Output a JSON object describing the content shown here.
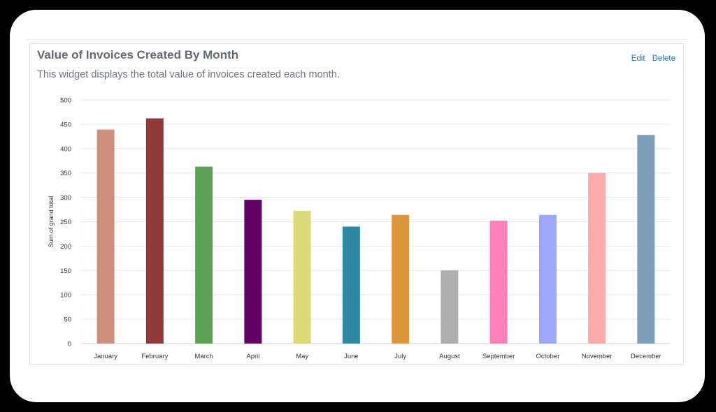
{
  "widget": {
    "title": "Value of Invoices Created By Month",
    "description": "This widget displays the total value of invoices created each month.",
    "edit_label": "Edit",
    "delete_label": "Delete"
  },
  "chart_data": {
    "type": "bar",
    "ylabel": "Sum of grand total",
    "ylim": [
      0,
      500
    ],
    "yticks": [
      0,
      50,
      100,
      150,
      200,
      250,
      300,
      350,
      400,
      450,
      500
    ],
    "grid": true,
    "categories": [
      "January",
      "February",
      "March",
      "April",
      "May",
      "June",
      "July",
      "August",
      "September",
      "October",
      "November",
      "December"
    ],
    "values": [
      439,
      462,
      363,
      295,
      272,
      240,
      264,
      150,
      252,
      264,
      350,
      428
    ],
    "colors": [
      "#cf8e79",
      "#923a3b",
      "#5ea456",
      "#640064",
      "#dbd978",
      "#3089a3",
      "#dd953a",
      "#afafaf",
      "#fd80b9",
      "#9ea8fb",
      "#ffaaaa",
      "#7b9db8"
    ]
  }
}
